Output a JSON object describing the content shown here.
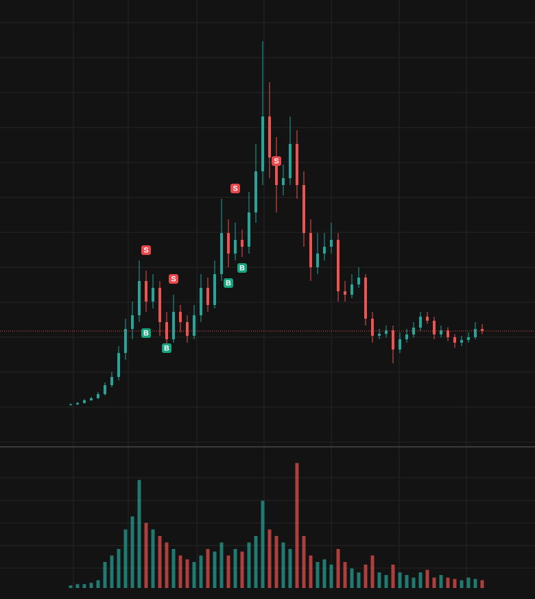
{
  "chart_data": {
    "type": "candlestick",
    "open": [
      1.8,
      2,
      2.4,
      3.2,
      3.8,
      5,
      7.6,
      10,
      17,
      24,
      28,
      38,
      32,
      36,
      26,
      21,
      29,
      26,
      22,
      28,
      36,
      31,
      40,
      52,
      46,
      50,
      48,
      58,
      70,
      86,
      74,
      66,
      68,
      78,
      66,
      52,
      42,
      46,
      48,
      50,
      35,
      34,
      37,
      39,
      27,
      22,
      22.6,
      23.6,
      18,
      21,
      22.4,
      24.4,
      27.6,
      26.4,
      22.4,
      23.6,
      21.6,
      20,
      20.8,
      21.6,
      24
    ],
    "high": [
      2.3,
      2.7,
      3.6,
      4.2,
      5.6,
      8.4,
      11.5,
      19,
      27,
      32,
      44,
      41,
      40,
      38,
      29,
      34,
      31,
      28,
      31,
      40,
      39,
      44,
      62,
      56,
      55,
      53,
      64,
      78,
      108,
      96,
      80,
      72,
      86,
      82,
      70,
      56,
      52,
      52,
      55,
      52,
      38,
      40,
      42,
      40,
      29,
      24,
      25,
      25,
      23,
      24,
      26,
      29,
      29,
      27.5,
      25,
      24.5,
      22.5,
      22,
      23,
      26,
      25.4
    ],
    "low": [
      1.6,
      1.8,
      2.2,
      3,
      3.5,
      4.6,
      7,
      9,
      15,
      21,
      26,
      29,
      30,
      22,
      18,
      20,
      23,
      20,
      21,
      26,
      29,
      30,
      38,
      42,
      44,
      45,
      46,
      55,
      66,
      68,
      58,
      63,
      66,
      62,
      48,
      38,
      40,
      44,
      46,
      32,
      32,
      33,
      36,
      25,
      20,
      21,
      21.5,
      14,
      17,
      20,
      21.5,
      23.5,
      25.5,
      21,
      21.5,
      20.5,
      18.5,
      19,
      20,
      21,
      22.5
    ],
    "close": [
      2,
      2.4,
      3.2,
      3.8,
      5,
      7.6,
      10,
      17,
      24,
      28,
      38,
      32,
      36,
      26,
      21,
      29,
      26,
      22,
      28,
      36,
      31,
      40,
      52,
      46,
      50,
      48,
      58,
      70,
      86,
      74,
      66,
      68,
      78,
      66,
      52,
      42,
      46,
      48,
      50,
      35,
      34,
      37,
      39,
      27,
      22,
      22.6,
      23.6,
      18,
      21,
      22.4,
      24.4,
      27.6,
      26.4,
      22.4,
      23.6,
      21.6,
      20,
      20.8,
      21.6,
      24,
      23.4
    ],
    "volume": [
      2,
      3,
      3,
      4,
      6,
      20,
      25,
      30,
      45,
      55,
      83,
      50,
      45,
      40,
      35,
      30,
      25,
      22,
      20,
      25,
      30,
      28,
      35,
      25,
      30,
      28,
      35,
      40,
      67,
      45,
      40,
      35,
      30,
      96,
      40,
      25,
      20,
      22,
      18,
      30,
      20,
      15,
      12,
      18,
      25,
      12,
      10,
      18,
      12,
      10,
      8,
      12,
      14,
      8,
      10,
      8,
      7,
      6,
      8,
      7,
      6
    ],
    "up_color": "#26a69a",
    "down_color": "#ef5350",
    "ylim": [
      -10,
      120
    ],
    "volume_ylim": [
      0,
      100
    ],
    "markers": [
      {
        "label": "S",
        "x": 11,
        "value": 47,
        "color": "#e8474c"
      },
      {
        "label": "S",
        "x": 15,
        "value": 38.6,
        "color": "#e8474c"
      },
      {
        "label": "S",
        "x": 24,
        "value": 65,
        "color": "#e8474c"
      },
      {
        "label": "S",
        "x": 30,
        "value": 73,
        "color": "#e8474c"
      },
      {
        "label": "B",
        "x": 11,
        "value": 22.8,
        "color": "#16a37e"
      },
      {
        "label": "B",
        "x": 14,
        "value": 18.4,
        "color": "#16a37e"
      },
      {
        "label": "B",
        "x": 23,
        "value": 37.4,
        "color": "#16a37e"
      },
      {
        "label": "B",
        "x": 25,
        "value": 41.8,
        "color": "#16a37e"
      }
    ]
  }
}
